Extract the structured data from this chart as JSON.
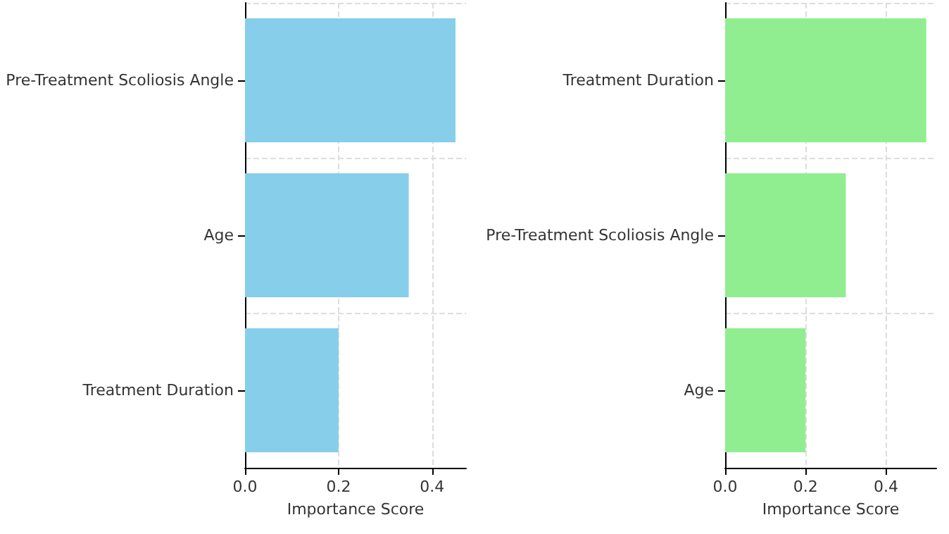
{
  "chart_data": [
    {
      "type": "bar",
      "orientation": "horizontal",
      "categories": [
        "Pre-Treatment Scoliosis Angle",
        "Age",
        "Treatment Duration"
      ],
      "values": [
        0.45,
        0.35,
        0.2
      ],
      "color": "#87ceeb",
      "xlabel": "Importance Score",
      "xlim": [
        0,
        0.4725
      ],
      "xticks": [
        {
          "value": 0,
          "label": "0.0"
        },
        {
          "value": 0.2,
          "label": "0.2"
        },
        {
          "value": 0.4,
          "label": "0.4"
        }
      ],
      "grid": true
    },
    {
      "type": "bar",
      "orientation": "horizontal",
      "categories": [
        "Treatment Duration",
        "Pre-Treatment Scoliosis Angle",
        "Age"
      ],
      "values": [
        0.5,
        0.3,
        0.2
      ],
      "color": "#90ee90",
      "xlabel": "Importance Score",
      "xlim": [
        0,
        0.525
      ],
      "xticks": [
        {
          "value": 0,
          "label": "0.0"
        },
        {
          "value": 0.2,
          "label": "0.2"
        },
        {
          "value": 0.4,
          "label": "0.4"
        }
      ],
      "grid": true
    }
  ]
}
